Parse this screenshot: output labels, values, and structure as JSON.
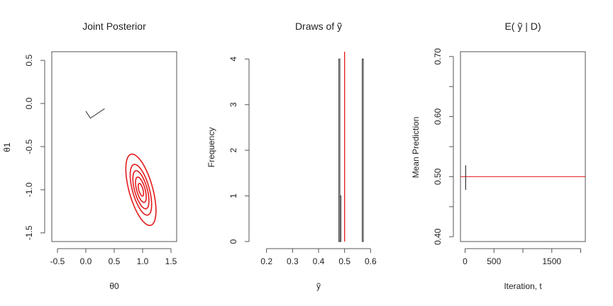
{
  "chart_data": [
    {
      "type": "contour",
      "title": "Joint Posterior",
      "xlabel": "θ0",
      "ylabel": "θ1",
      "xlim": [
        -0.6,
        1.6
      ],
      "ylim": [
        -1.6,
        0.6
      ],
      "xticks": [
        -0.5,
        0,
        0.5,
        1,
        1.5
      ],
      "xtick_labels": [
        "-0.5",
        "0.0",
        "0.5",
        "1.0",
        "1.5"
      ],
      "yticks": [
        -1.5,
        -1,
        -0.5,
        0,
        0.5
      ],
      "ytick_labels": [
        "-1.5",
        "-1.0",
        "-0.5",
        "0.0",
        "0.5"
      ],
      "trace": {
        "x": [
          0.0,
          0.08,
          0.33
        ],
        "y": [
          -0.09,
          -0.17,
          -0.06
        ]
      },
      "contours": {
        "center": [
          0.97,
          -1.0
        ],
        "major_radii": [
          0.08,
          0.16,
          0.24,
          0.32,
          0.45
        ],
        "minor_ratio": 0.44,
        "angle_deg": -64,
        "color": "#e41a1c"
      }
    },
    {
      "type": "histogram",
      "title": "Draws of ỹ",
      "xlabel": "ỹ",
      "ylabel": "Frequency",
      "xlim": [
        0.16,
        0.64
      ],
      "ylim": [
        0,
        4.16
      ],
      "xticks": [
        0.2,
        0.3,
        0.4,
        0.5,
        0.6
      ],
      "xtick_labels": [
        "0.2",
        "0.3",
        "0.4",
        "0.5",
        "0.6"
      ],
      "yticks": [
        0,
        1,
        2,
        3,
        4
      ],
      "ytick_labels": [
        "0",
        "1",
        "2",
        "3",
        "4"
      ],
      "bars": [
        {
          "x0": 0.478,
          "x1": 0.482,
          "count": 4
        },
        {
          "x0": 0.482,
          "x1": 0.486,
          "count": 1
        },
        {
          "x0": 0.486,
          "x1": 0.568,
          "count": 0
        },
        {
          "x0": 0.568,
          "x1": 0.572,
          "count": 4
        }
      ],
      "vline": 0.5,
      "vline_color": "#e41a1c"
    },
    {
      "type": "line",
      "title": "E( ỹ | D)",
      "xlabel": "Iteration, t",
      "ylabel": "Mean Prediction",
      "xlim": [
        -80,
        2080
      ],
      "ylim": [
        0.392,
        0.708
      ],
      "xticks": [
        0,
        500,
        1500
      ],
      "xtick_labels": [
        "0",
        "500",
        "1500"
      ],
      "xticks_minor": [
        1000,
        2000
      ],
      "yticks": [
        0.4,
        0.5,
        0.6,
        0.7
      ],
      "ytick_labels": [
        "0.40",
        "0.50",
        "0.60",
        "0.70"
      ],
      "yticks_minor": [
        0.45,
        0.55,
        0.65
      ],
      "series": [
        {
          "x": [
            10,
            10
          ],
          "y": [
            0.478,
            0.519
          ],
          "color": "#333333"
        }
      ],
      "hline": 0.5,
      "hline_color": "#e41a1c"
    }
  ]
}
